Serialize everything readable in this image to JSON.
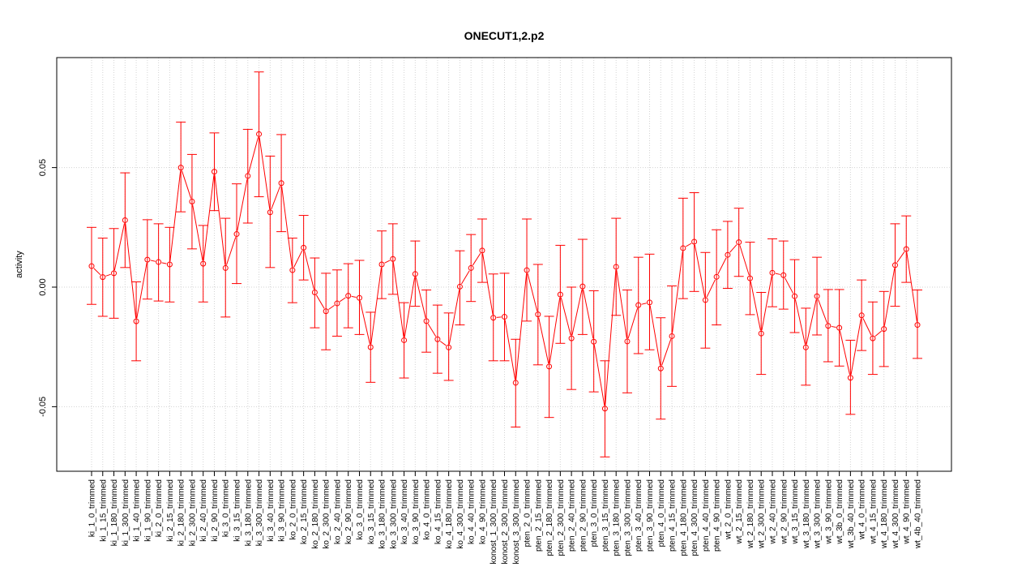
{
  "chart_data": {
    "type": "line",
    "title": "ONECUT1,2.p2",
    "xlabel": "",
    "ylabel": "activity",
    "ylim": [
      -0.077,
      0.096
    ],
    "yticks": [
      -0.05,
      0.0,
      0.05
    ],
    "ytick_labels": [
      "-0.05",
      "0.00",
      "0.05"
    ],
    "grid": true,
    "line_color": "#ff0000",
    "categories": [
      "ki_1_0_trimmed",
      "ki_1_15_trimmed",
      "ki_1_180_trimmed",
      "ki_1_300_trimmed",
      "ki_1_40_trimmed",
      "ki_1_90_trimmed",
      "ki_2_0_trimmed",
      "ki_2_15_trimmed",
      "ki_2_180_trimmed",
      "ki_2_300_trimmed",
      "ki_2_40_trimmed",
      "ki_2_90_trimmed",
      "ki_3_0_trimmed",
      "ki_3_15_trimmed",
      "ki_3_180_trimmed",
      "ki_3_300_trimmed",
      "ki_3_40_trimmed",
      "ki_3_90_trimmed",
      "ko_2_0_trimmed",
      "ko_2_15_trimmed",
      "ko_2_180_trimmed",
      "ko_2_300_trimmed",
      "ko_2_40_trimmed",
      "ko_2_90_trimmed",
      "ko_3_0_trimmed",
      "ko_3_15_trimmed",
      "ko_3_180_trimmed",
      "ko_3_300_trimmed",
      "ko_3_40_trimmed",
      "ko_3_90_trimmed",
      "ko_4_0_trimmed",
      "ko_4_15_trimmed",
      "ko_4_180_trimmed",
      "ko_4_300_trimmed",
      "ko_4_40_trimmed",
      "ko_4_90_trimmed",
      "konost_1_300_trimmed",
      "konost_2_300_trimmed",
      "konost_3_300_trimmed",
      "pten_2_0_trimmed",
      "pten_2_15_trimmed",
      "pten_2_180_trimmed",
      "pten_2_300_trimmed",
      "pten_2_40_trimmed",
      "pten_2_90_trimmed",
      "pten_3_0_trimmed",
      "pten_3_15_trimmed",
      "pten_3_180_trimmed",
      "pten_3_300_trimmed",
      "pten_3_40_trimmed",
      "pten_3_90_trimmed",
      "pten_4_0_trimmed",
      "pten_4_15_trimmed",
      "pten_4_180_trimmed",
      "pten_4_300_trimmed",
      "pten_4_40_trimmed",
      "pten_4_90_trimmed",
      "wt_2_0_trimmed",
      "wt_2_15_trimmed",
      "wt_2_180_trimmed",
      "wt_2_300_trimmed",
      "wt_2_40_trimmed",
      "wt_2_90_trimmed",
      "wt_3_15_trimmed",
      "wt_3_180_trimmed",
      "wt_3_300_trimmed",
      "wt_3_90_trimmed",
      "wt_3b_0_trimmed",
      "wt_3b_40_trimmed",
      "wt_4_0_trimmed",
      "wt_4_15_trimmed",
      "wt_4_180_trimmed",
      "wt_4_300_trimmed",
      "wt_4_90_trimmed",
      "wt_4b_40_trimmed"
    ],
    "values": [
      0.0088,
      0.0042,
      0.0058,
      0.028,
      -0.0143,
      0.0115,
      0.0105,
      0.0095,
      0.05,
      0.0358,
      0.0098,
      0.0483,
      0.008,
      0.0222,
      0.0465,
      0.064,
      0.0313,
      0.0435,
      0.0071,
      0.0165,
      -0.0022,
      -0.0101,
      -0.0068,
      -0.0036,
      -0.0045,
      -0.0251,
      0.0095,
      0.0118,
      -0.0222,
      0.0055,
      -0.0142,
      -0.0218,
      -0.0252,
      0.0002,
      0.008,
      0.0153,
      -0.0128,
      -0.0124,
      -0.04,
      0.0071,
      -0.0114,
      -0.0332,
      -0.0031,
      -0.0214,
      0.0003,
      -0.0228,
      -0.0508,
      0.0085,
      -0.0227,
      -0.0075,
      -0.0064,
      -0.034,
      -0.0205,
      0.0163,
      0.019,
      -0.0054,
      0.0043,
      0.0135,
      0.0188,
      0.0037,
      -0.0194,
      0.006,
      0.005,
      -0.0038,
      -0.0252,
      -0.0038,
      -0.0162,
      -0.017,
      -0.0379,
      -0.0118,
      -0.0214,
      -0.0175,
      0.0092,
      0.0159,
      -0.0158
    ],
    "upper": [
      0.025,
      0.0205,
      0.0245,
      0.0478,
      0.0022,
      0.0282,
      0.0265,
      0.025,
      0.069,
      0.0555,
      0.0258,
      0.0645,
      0.0288,
      0.0432,
      0.066,
      0.09,
      0.0548,
      0.0638,
      0.0205,
      0.03,
      0.0122,
      0.0058,
      0.0072,
      0.0098,
      0.0112,
      -0.0105,
      0.0235,
      0.0265,
      -0.0065,
      0.0193,
      -0.0012,
      -0.0075,
      -0.0108,
      0.0152,
      0.022,
      0.0285,
      0.0055,
      0.0058,
      -0.0218,
      0.0285,
      0.0095,
      -0.0122,
      0.0175,
      0.0,
      0.02,
      -0.0015,
      -0.0308,
      0.0288,
      -0.0012,
      0.0125,
      0.0138,
      -0.0128,
      0.0005,
      0.0372,
      0.0395,
      0.0145,
      0.024,
      0.0275,
      0.033,
      0.0188,
      -0.0022,
      0.0202,
      0.0193,
      0.0115,
      -0.0088,
      0.0125,
      -0.001,
      -0.001,
      -0.0222,
      0.003,
      -0.0062,
      -0.0018,
      0.0265,
      0.0298,
      -0.0012
    ],
    "lower": [
      -0.0072,
      -0.0122,
      -0.013,
      0.0082,
      -0.0308,
      -0.005,
      -0.0058,
      -0.0062,
      0.0315,
      0.016,
      -0.0062,
      0.032,
      -0.0125,
      0.0015,
      0.0268,
      0.0378,
      0.0082,
      0.0232,
      -0.0065,
      0.003,
      -0.017,
      -0.0262,
      -0.0205,
      -0.017,
      -0.0198,
      -0.0398,
      -0.0048,
      -0.003,
      -0.038,
      -0.008,
      -0.0272,
      -0.036,
      -0.039,
      -0.0158,
      -0.006,
      0.002,
      -0.0308,
      -0.0308,
      -0.0585,
      -0.0142,
      -0.0325,
      -0.0545,
      -0.0235,
      -0.0428,
      -0.0198,
      -0.0438,
      -0.071,
      -0.0118,
      -0.0442,
      -0.0278,
      -0.0262,
      -0.0552,
      -0.0415,
      -0.0048,
      -0.0018,
      -0.0255,
      -0.0158,
      -0.0005,
      0.0045,
      -0.0115,
      -0.0365,
      -0.0082,
      -0.0092,
      -0.019,
      -0.041,
      -0.02,
      -0.0312,
      -0.033,
      -0.0532,
      -0.0265,
      -0.0365,
      -0.0332,
      -0.008,
      0.002,
      -0.0298
    ]
  }
}
